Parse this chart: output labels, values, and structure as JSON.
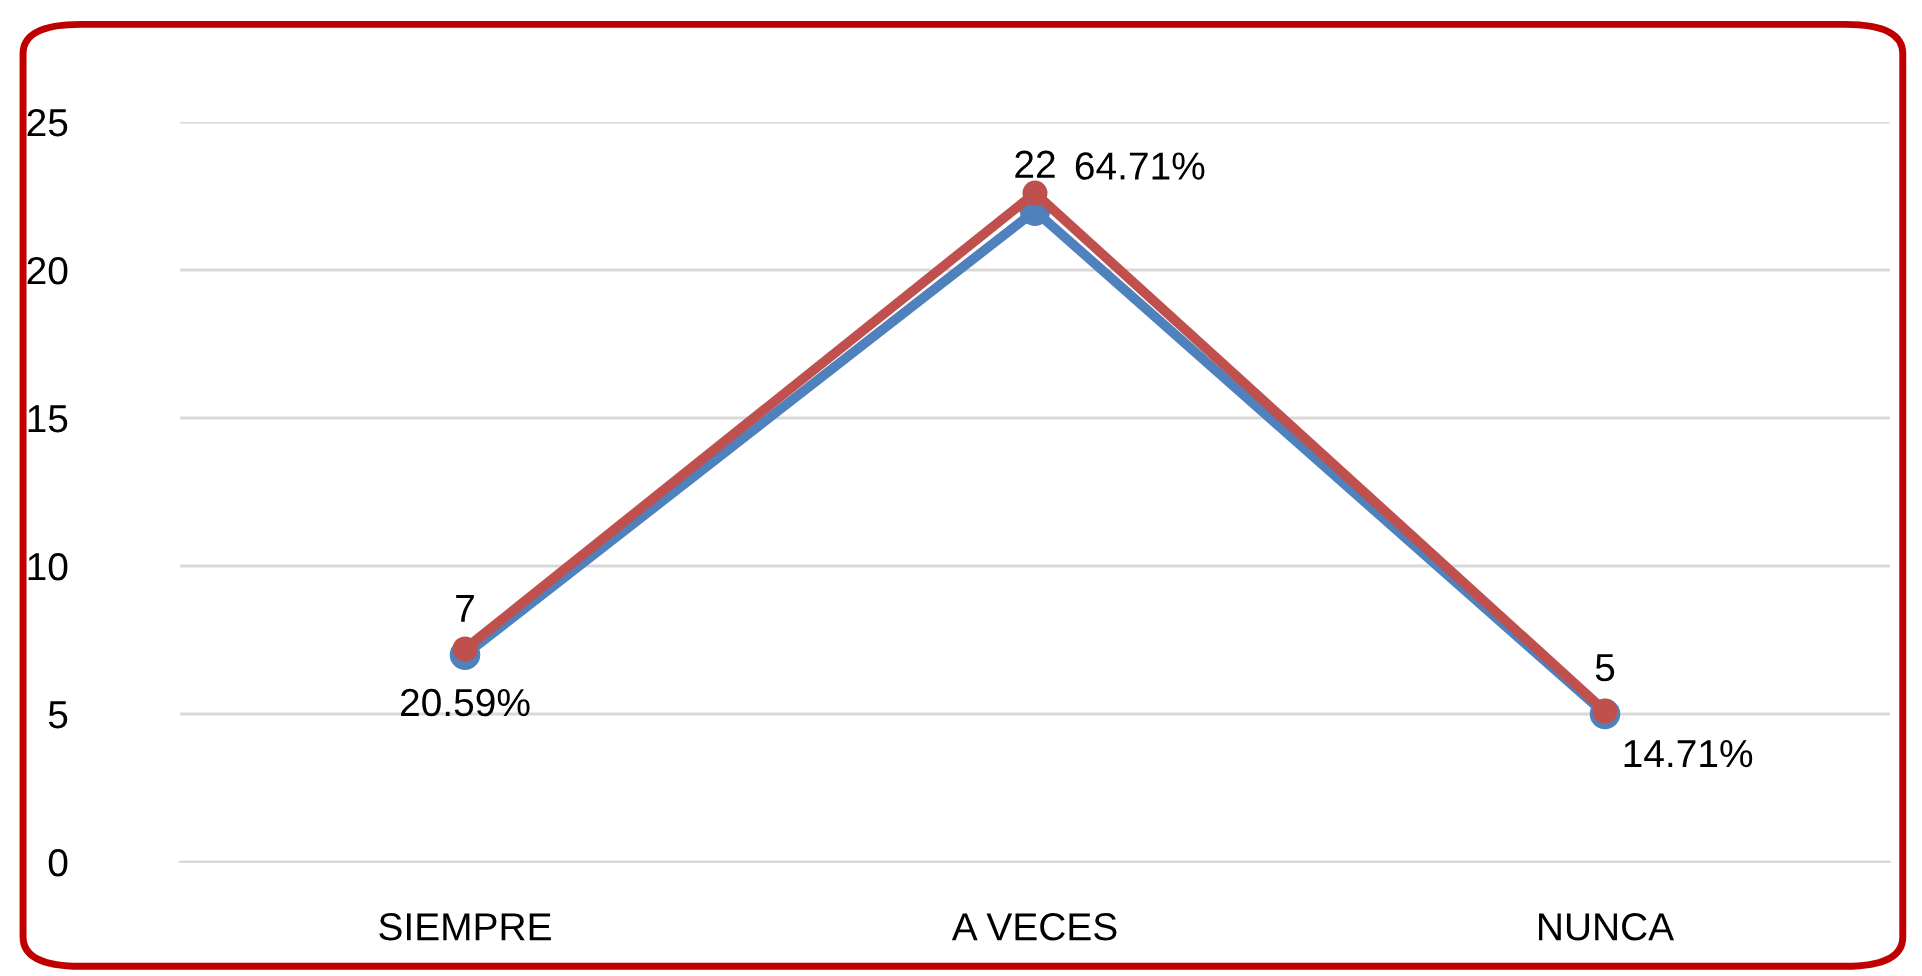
{
  "chart_data": {
    "type": "line",
    "categories": [
      "SIEMPRE",
      "A VECES",
      "NUNCA"
    ],
    "series": [
      {
        "color": "#4f81bd",
        "values": [
          7,
          22,
          5
        ],
        "value_labels": [
          "7",
          "22",
          "5"
        ]
      },
      {
        "color": "#c0504d",
        "values": [
          7.2,
          22.6,
          5.1
        ]
      }
    ],
    "annotations": [
      {
        "text": "20.59%",
        "x": "SIEMPRE",
        "y": 7.2
      },
      {
        "text": "64.71%",
        "x": "A VECES",
        "y": 22.6
      },
      {
        "text": "14.71%",
        "x": "NUNCA",
        "y": 5.1
      }
    ],
    "ylim": [
      0,
      25
    ],
    "yticks": [
      0,
      5,
      10,
      15,
      20,
      25
    ],
    "grid": "y",
    "marker": "circle",
    "line_style": "solid"
  }
}
